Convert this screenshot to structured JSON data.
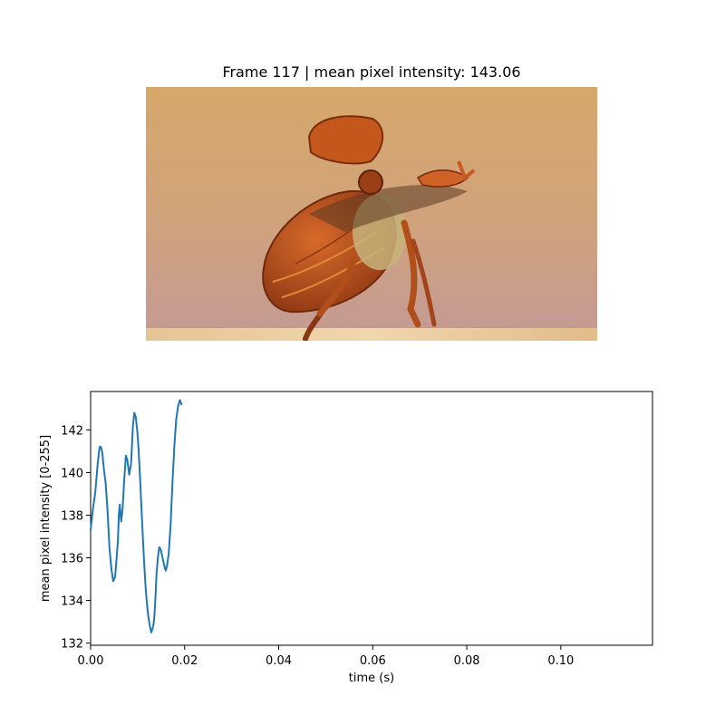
{
  "frame": {
    "title": "Frame 117 | mean pixel intensity: 143.06",
    "image_subject": "beetle taking flight on a wooden surface"
  },
  "colors": {
    "line": "#1f77b4",
    "sky_top": "#d6a86a",
    "sky_bottom": "#c49b91",
    "beetle": "#b5521d",
    "wood": "#e8c89a"
  },
  "chart_data": {
    "type": "line",
    "title": "",
    "xlabel": "time (s)",
    "ylabel": "mean pixel intensity [0-255]",
    "xlim": [
      0,
      0.1195
    ],
    "ylim": [
      131.9,
      143.8
    ],
    "xticks": [
      0.0,
      0.02,
      0.04,
      0.06,
      0.08,
      0.1
    ],
    "xtick_labels": [
      "0.00",
      "0.02",
      "0.04",
      "0.06",
      "0.08",
      "0.10"
    ],
    "yticks": [
      132,
      134,
      136,
      138,
      140,
      142
    ],
    "ytick_labels": [
      "132",
      "134",
      "136",
      "138",
      "140",
      "142"
    ],
    "grid": false,
    "series": [
      {
        "x": [
          0.0,
          0.0005,
          0.001,
          0.0015,
          0.0019,
          0.0022,
          0.0025,
          0.0028,
          0.0032,
          0.0036,
          0.004,
          0.0044,
          0.0048,
          0.0052,
          0.0055,
          0.0058,
          0.006,
          0.0062,
          0.0065,
          0.0068,
          0.0071,
          0.0075,
          0.0078,
          0.0082,
          0.0086,
          0.009,
          0.0093,
          0.0096,
          0.0099,
          0.0102,
          0.0105,
          0.0108,
          0.0111,
          0.0114,
          0.0117,
          0.012,
          0.0123,
          0.0126,
          0.0129,
          0.0132,
          0.0134,
          0.0136,
          0.0138,
          0.014,
          0.0143,
          0.0146,
          0.0149,
          0.0152,
          0.0155,
          0.0158,
          0.016,
          0.0163,
          0.0166,
          0.017,
          0.0174,
          0.0178,
          0.0182,
          0.0186,
          0.019,
          0.0193
        ],
        "y": [
          137.3,
          138.3,
          139.1,
          140.4,
          141.2,
          141.2,
          140.9,
          140.2,
          139.5,
          138.2,
          136.5,
          135.5,
          134.9,
          135.1,
          135.9,
          136.8,
          138.0,
          138.5,
          137.7,
          138.3,
          139.5,
          140.8,
          140.6,
          139.9,
          140.4,
          142.2,
          142.8,
          142.6,
          142.0,
          141.1,
          139.8,
          138.4,
          137.0,
          135.7,
          134.6,
          133.8,
          133.2,
          132.8,
          132.5,
          132.7,
          132.9,
          133.4,
          134.2,
          135.2,
          136.0,
          136.5,
          136.4,
          136.1,
          135.8,
          135.5,
          135.4,
          135.7,
          136.2,
          137.5,
          139.5,
          141.2,
          142.5,
          143.1,
          143.4,
          143.2
        ]
      }
    ]
  }
}
